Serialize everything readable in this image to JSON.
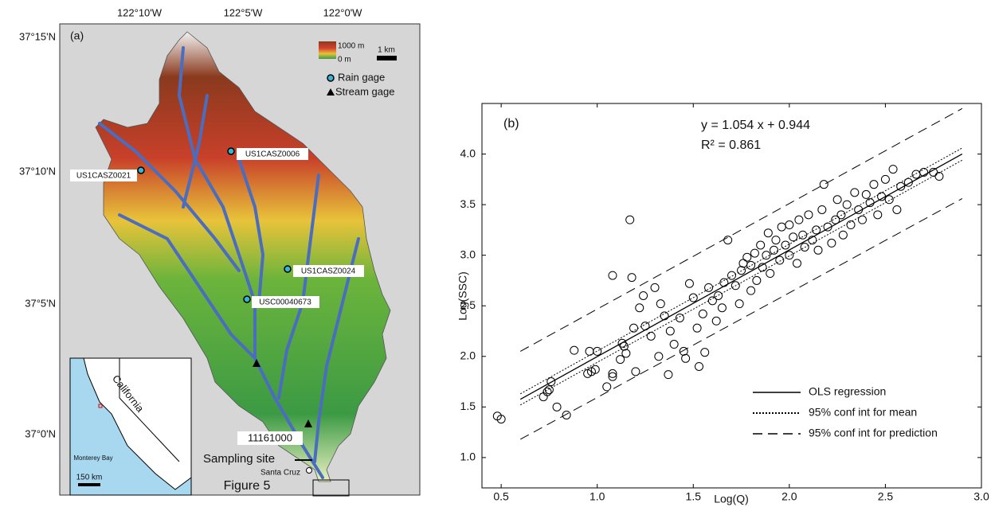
{
  "map": {
    "panel_label": "(a)",
    "lon_labels": [
      "122°10'W",
      "122°5'W",
      "122°0'W"
    ],
    "lat_labels": [
      "37°15'N",
      "37°10'N",
      "37°5'N",
      "37°0'N"
    ],
    "legend": {
      "elevation_max": "1000 m",
      "elevation_min": "0 m",
      "scale": "1 km",
      "rain_gage": "Rain gage",
      "stream_gage": "Stream gage"
    },
    "gages": [
      "US1CASZ0021",
      "US1CASZ0006",
      "US1CASZ0024",
      "USC00040673",
      "11161000"
    ],
    "sampling_site": "Sampling site",
    "city": "Santa Cruz",
    "inset": {
      "state": "California",
      "bay": "Monterey Bay",
      "scale": "150 km"
    },
    "caption": "Figure 5"
  },
  "chart_data": {
    "type": "scatter",
    "panel_label": "(b)",
    "equation": "y = 1.054 x + 0.944",
    "r_squared": "R² = 0.861",
    "x_label": "Log(Q)",
    "y_label": "Log(SSC)",
    "xlim": [
      0.4,
      3.0
    ],
    "ylim": [
      0.7,
      4.5
    ],
    "xticks": [
      0.5,
      {
        "value": 1,
        "label": "1.0"
      },
      1.5,
      {
        "value": 2,
        "label": "2.0"
      },
      2.5,
      {
        "value": 3,
        "label": "3.0"
      }
    ],
    "yticks": [
      {
        "value": 1,
        "label": "1.0"
      },
      1.5,
      {
        "value": 2,
        "label": "2.0"
      },
      2.5,
      {
        "value": 3,
        "label": "3.0"
      },
      3.5,
      {
        "value": 4,
        "label": "4.0"
      }
    ],
    "points": {
      "x": [
        0.48,
        0.5,
        0.72,
        0.74,
        0.75,
        0.79,
        0.84,
        0.76,
        0.88,
        0.95,
        0.97,
        0.99,
        0.96,
        1.0,
        1.05,
        1.08,
        1.08,
        1.08,
        1.12,
        1.13,
        1.14,
        1.15,
        1.17,
        1.18,
        1.19,
        1.2,
        1.22,
        1.24,
        1.25,
        1.28,
        1.3,
        1.32,
        1.33,
        1.35,
        1.37,
        1.38,
        1.4,
        1.43,
        1.45,
        1.46,
        1.48,
        1.5,
        1.52,
        1.53,
        1.55,
        1.56,
        1.58,
        1.6,
        1.62,
        1.63,
        1.65,
        1.66,
        1.68,
        1.7,
        1.72,
        1.74,
        1.75,
        1.76,
        1.78,
        1.8,
        1.8,
        1.82,
        1.83,
        1.85,
        1.86,
        1.88,
        1.89,
        1.9,
        1.92,
        1.93,
        1.95,
        1.96,
        1.98,
        2.0,
        2.0,
        2.02,
        2.04,
        2.05,
        2.07,
        2.08,
        2.1,
        2.12,
        2.14,
        2.15,
        2.17,
        2.18,
        2.2,
        2.22,
        2.24,
        2.25,
        2.27,
        2.28,
        2.3,
        2.32,
        2.34,
        2.36,
        2.38,
        2.4,
        2.42,
        2.44,
        2.46,
        2.48,
        2.5,
        2.52,
        2.54,
        2.56,
        2.58,
        2.62,
        2.66,
        2.7,
        2.75,
        2.78
      ],
      "values": [
        1.41,
        1.38,
        1.6,
        1.65,
        1.67,
        1.5,
        1.42,
        1.75,
        2.06,
        1.83,
        1.85,
        1.87,
        2.05,
        2.05,
        1.7,
        1.8,
        1.83,
        2.8,
        1.97,
        2.13,
        2.1,
        2.03,
        3.35,
        2.78,
        2.28,
        1.85,
        2.48,
        2.6,
        2.3,
        2.2,
        2.68,
        2.0,
        2.52,
        2.4,
        1.82,
        2.25,
        2.12,
        2.38,
        2.05,
        1.98,
        2.72,
        2.58,
        2.28,
        1.9,
        2.42,
        2.04,
        2.68,
        2.55,
        2.35,
        2.6,
        2.48,
        2.73,
        3.15,
        2.8,
        2.7,
        2.52,
        2.85,
        2.92,
        2.98,
        2.65,
        2.9,
        3.02,
        2.75,
        3.1,
        2.88,
        3.0,
        3.22,
        2.82,
        3.05,
        3.15,
        2.95,
        3.28,
        3.1,
        3.0,
        3.3,
        3.18,
        2.92,
        3.35,
        3.2,
        3.08,
        3.4,
        3.15,
        3.25,
        3.05,
        3.45,
        3.7,
        3.28,
        3.12,
        3.35,
        3.55,
        3.4,
        3.2,
        3.5,
        3.3,
        3.62,
        3.45,
        3.35,
        3.6,
        3.52,
        3.7,
        3.4,
        3.58,
        3.75,
        3.55,
        3.85,
        3.45,
        3.68,
        3.72,
        3.8,
        3.82,
        3.82,
        3.78
      ]
    },
    "lines": [
      {
        "name": "OLS regression",
        "dash": "solid",
        "x": [
          0.6,
          2.9
        ],
        "values": [
          1.576,
          4.001
        ]
      },
      {
        "name": "95% conf int for mean",
        "dash": "dotted",
        "x": [
          0.6,
          2.9
        ],
        "lower": [
          1.52,
          3.94
        ],
        "upper": [
          1.63,
          4.06
        ]
      },
      {
        "name": "95% conf int for prediction",
        "dash": "dashed",
        "x": [
          0.6,
          2.9
        ],
        "lower": [
          1.18,
          3.56
        ],
        "upper": [
          2.05,
          4.45
        ]
      }
    ]
  }
}
